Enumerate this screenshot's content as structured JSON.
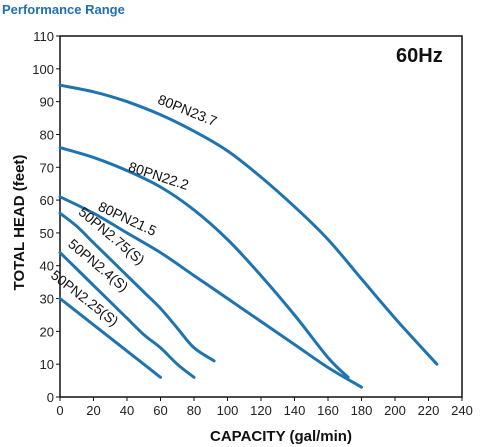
{
  "page": {
    "heading": "Performance Range"
  },
  "chart_data": {
    "type": "line",
    "title": "",
    "annotation": "60Hz",
    "xlabel": "CAPACITY (gal/min)",
    "ylabel": "TOTAL HEAD (feet)",
    "xlim": [
      0,
      240
    ],
    "ylim": [
      0,
      110
    ],
    "xticks": [
      0,
      20,
      40,
      60,
      80,
      100,
      120,
      140,
      160,
      180,
      200,
      220,
      240
    ],
    "yticks": [
      0,
      10,
      20,
      30,
      40,
      50,
      60,
      70,
      80,
      90,
      100,
      110
    ],
    "grid": false,
    "line_color": "#1f74b0",
    "series": [
      {
        "name": "80PN23.7",
        "label_at": [
          75,
          86
        ],
        "label_angle": 22,
        "x": [
          0,
          20,
          40,
          60,
          80,
          100,
          120,
          140,
          160,
          180,
          200,
          225
        ],
        "y": [
          95,
          93,
          90,
          86,
          81,
          75,
          67,
          58,
          48,
          36,
          24,
          10
        ]
      },
      {
        "name": "80PN22.2",
        "label_at": [
          58,
          66
        ],
        "label_angle": 18,
        "x": [
          0,
          20,
          40,
          60,
          80,
          100,
          120,
          140,
          160,
          172
        ],
        "y": [
          76,
          73,
          69,
          64,
          57,
          48,
          37,
          25,
          12,
          6
        ]
      },
      {
        "name": "80PN21.5",
        "label_at": [
          39,
          53
        ],
        "label_angle": 25,
        "x": [
          0,
          20,
          40,
          60,
          80,
          100,
          120,
          140,
          160,
          180
        ],
        "y": [
          61,
          56,
          50,
          44,
          37,
          30,
          23,
          16,
          9,
          3
        ]
      },
      {
        "name": "50PN2.75(S)",
        "label_at": [
          29,
          48
        ],
        "label_angle": 40,
        "x": [
          0,
          10,
          20,
          30,
          40,
          50,
          60,
          70,
          80,
          92
        ],
        "y": [
          56,
          52,
          47,
          42,
          37,
          32,
          27,
          21,
          15,
          11
        ]
      },
      {
        "name": "50PN2.4(S)",
        "label_at": [
          21,
          39
        ],
        "label_angle": 40,
        "x": [
          0,
          10,
          20,
          30,
          40,
          50,
          60,
          70,
          80
        ],
        "y": [
          44,
          39,
          34,
          29,
          24,
          19,
          15,
          10,
          6
        ]
      },
      {
        "name": "50PN2.25(S)",
        "label_at": [
          13,
          29
        ],
        "label_angle": 38,
        "x": [
          0,
          10,
          20,
          30,
          40,
          50,
          60
        ],
        "y": [
          30,
          26,
          22,
          18,
          14,
          10,
          6
        ]
      }
    ]
  }
}
